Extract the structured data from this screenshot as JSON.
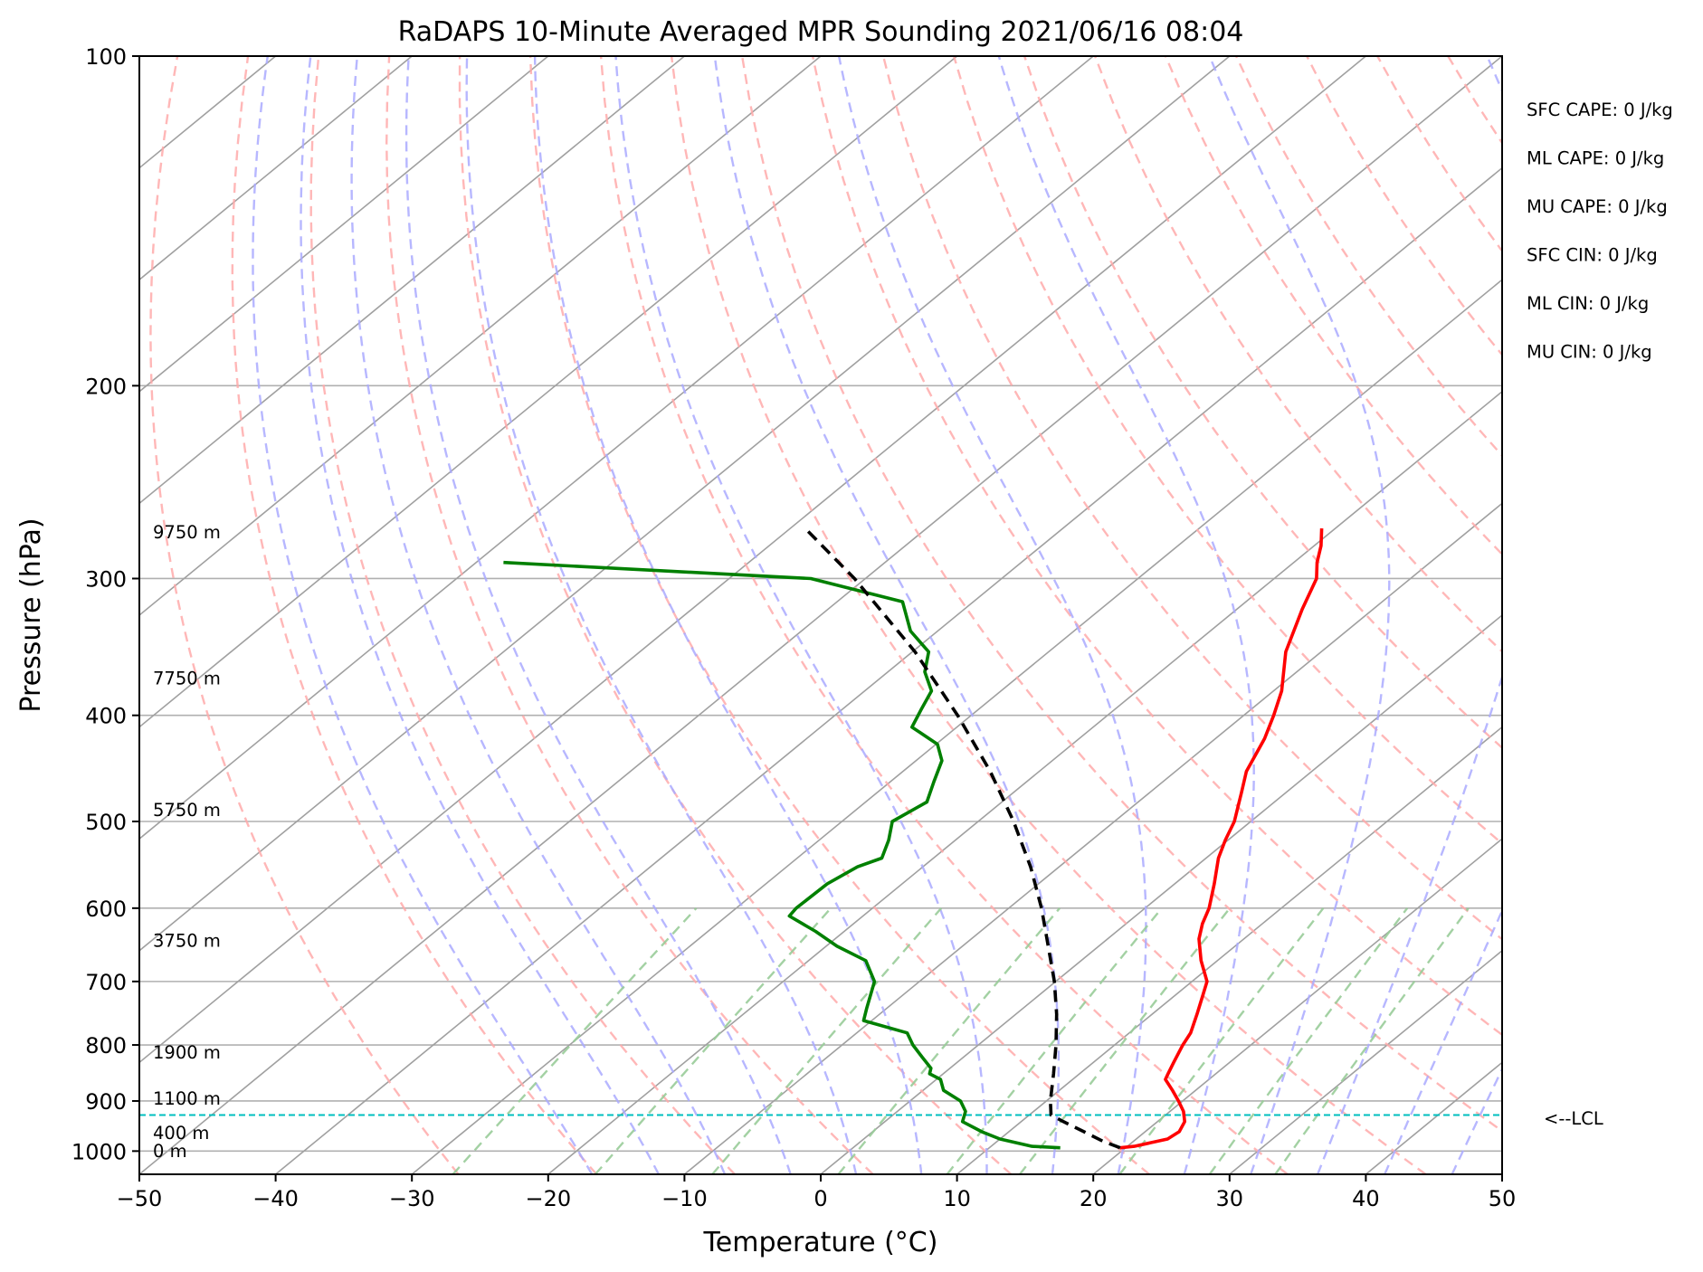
{
  "chart_data": {
    "type": "skew-t",
    "title": "RaDAPS 10-Minute Averaged MPR Sounding 2021/06/16 08:04",
    "xlabel": "Temperature (°C)",
    "ylabel": "Pressure (hPa)",
    "xlim": [
      -50,
      50
    ],
    "ylim": [
      1050,
      100
    ],
    "y_scale": "log",
    "x_ticks": [
      -50,
      -40,
      -30,
      -20,
      -10,
      0,
      10,
      20,
      30,
      40,
      50
    ],
    "x_tick_labels": [
      "−50",
      "−40",
      "−30",
      "−20",
      "−10",
      "0",
      "10",
      "20",
      "30",
      "40",
      "50"
    ],
    "y_ticks": [
      100,
      200,
      300,
      400,
      500,
      600,
      700,
      800,
      900,
      1000
    ],
    "y_tick_labels": [
      "100",
      "200",
      "300",
      "400",
      "500",
      "600",
      "700",
      "800",
      "900",
      "1000"
    ],
    "grid": true,
    "colors": {
      "temperature": "#ff0000",
      "dewpoint": "#008000",
      "parcel": "#000000",
      "lcl": "#00bfbf",
      "dry_adiabats": "#ffaaaa",
      "moist_adiabats": "#aaaaff",
      "mixing_ratio": "#99cc99",
      "isotherms": "#a0a0a0"
    },
    "series": [
      {
        "name": "Temperature",
        "style": "solid",
        "p": [
          993,
          990,
          975,
          960,
          940,
          920,
          900,
          880,
          860,
          850,
          830,
          800,
          780,
          750,
          720,
          700,
          670,
          640,
          620,
          600,
          570,
          540,
          520,
          500,
          470,
          450,
          420,
          400,
          380,
          350,
          320,
          300,
          290,
          280,
          270
        ],
        "t": [
          19.6,
          20.5,
          22.3,
          22.5,
          22.0,
          21.0,
          19.7,
          18.3,
          16.8,
          16.5,
          15.9,
          15.0,
          14.5,
          13.3,
          12.0,
          11.1,
          8.8,
          6.7,
          5.6,
          4.7,
          2.9,
          0.9,
          -0.2,
          -1.2,
          -3.3,
          -4.8,
          -6.4,
          -7.8,
          -9.4,
          -12.6,
          -15.2,
          -16.9,
          -18.3,
          -19.5,
          -21.0
        ]
      },
      {
        "name": "Dewpoint",
        "style": "solid",
        "p": [
          993,
          990,
          975,
          960,
          940,
          920,
          900,
          880,
          860,
          850,
          840,
          820,
          800,
          780,
          760,
          740,
          700,
          670,
          650,
          630,
          610,
          600,
          570,
          550,
          540,
          520,
          500,
          480,
          460,
          440,
          425,
          410,
          395,
          380,
          365,
          350,
          335,
          315,
          300,
          290
        ],
        "t": [
          15.2,
          13.0,
          10.0,
          8.0,
          5.7,
          5.0,
          3.7,
          1.5,
          0.3,
          -1.0,
          -1.4,
          -3.1,
          -4.8,
          -6.3,
          -10.6,
          -11.5,
          -13.3,
          -15.8,
          -19.2,
          -22.1,
          -25.4,
          -25.6,
          -25.5,
          -24.8,
          -23.8,
          -24.9,
          -26.3,
          -25.5,
          -26.8,
          -28.1,
          -29.9,
          -33.3,
          -34.2,
          -35.1,
          -37.3,
          -38.8,
          -42.0,
          -45.2,
          -54.0,
          -78.0
        ]
      },
      {
        "name": "Parcel",
        "style": "dashed",
        "p": [
          993,
          980,
          960,
          940,
          927,
          900,
          850,
          800,
          750,
          700,
          650,
          600,
          550,
          500,
          450,
          400,
          350,
          300,
          270
        ],
        "t": [
          19.6,
          17.8,
          15.5,
          13.1,
          11.6,
          10.3,
          8.1,
          5.7,
          3.0,
          -0.1,
          -3.7,
          -7.6,
          -12.1,
          -17.4,
          -23.6,
          -31.0,
          -39.8,
          -50.8,
          -58.9
        ]
      }
    ],
    "lcl": {
      "pressure": 927,
      "label": "<--LCL"
    },
    "height_labels": [
      {
        "text": "9750 m",
        "p": 272
      },
      {
        "text": "7750 m",
        "p": 370
      },
      {
        "text": "5750 m",
        "p": 488
      },
      {
        "text": "3750 m",
        "p": 642
      },
      {
        "text": "1900 m",
        "p": 812
      },
      {
        "text": "1100 m",
        "p": 895
      },
      {
        "text": "400 m",
        "p": 962
      },
      {
        "text": "0 m",
        "p": 999
      }
    ],
    "indices": [
      "SFC CAPE: 0 J/kg",
      "ML CAPE: 0 J/kg",
      "MU CAPE: 0 J/kg",
      "SFC CIN: 0 J/kg",
      "ML CIN: 0 J/kg",
      "MU CIN: 0 J/kg"
    ]
  }
}
